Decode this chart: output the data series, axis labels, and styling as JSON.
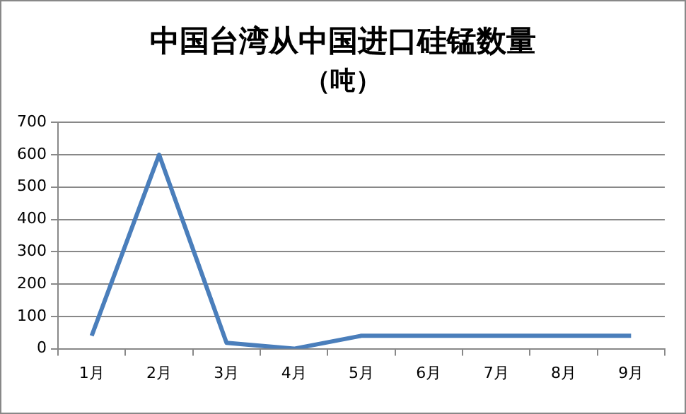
{
  "chart_data": {
    "type": "line",
    "title": "中国台湾从中国进口硅锰数量",
    "subtitle": "（吨）",
    "categories": [
      "1月",
      "2月",
      "3月",
      "4月",
      "5月",
      "6月",
      "7月",
      "8月",
      "9月"
    ],
    "series": [
      {
        "color": "#4a7ebb",
        "values": [
          40,
          600,
          18,
          0,
          40,
          40,
          40,
          40,
          40
        ]
      }
    ],
    "ylim": [
      0,
      700
    ],
    "yticks": [
      0,
      100,
      200,
      300,
      400,
      500,
      600,
      700
    ],
    "grid": "y",
    "legend": false,
    "marker": "none",
    "line_style": "solid"
  }
}
